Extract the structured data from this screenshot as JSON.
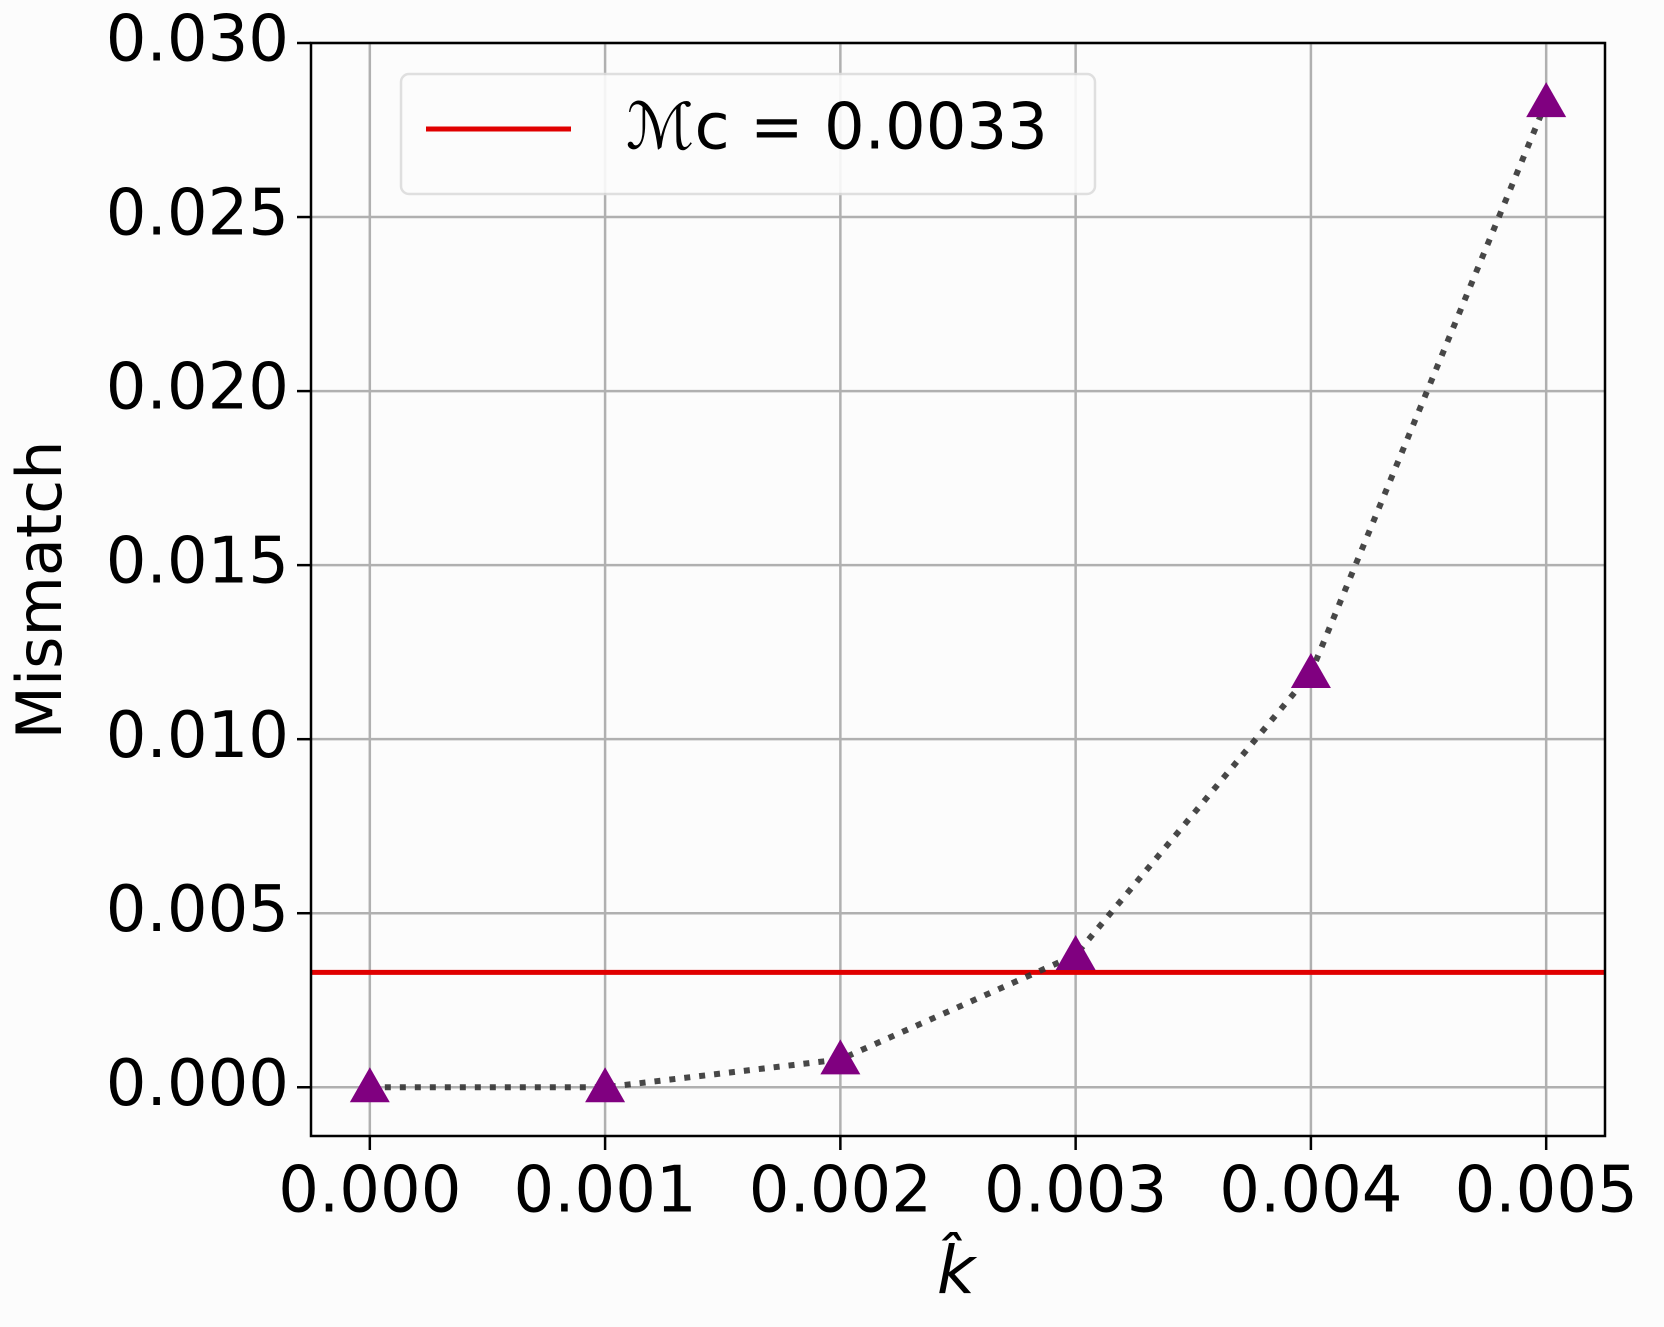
{
  "chart_data": {
    "type": "line",
    "x_label": "k̂",
    "y_label": "Mismatch",
    "x": [
      0,
      0.001,
      0.002,
      0.003,
      0.004,
      0.005
    ],
    "series": [
      {
        "color": "#800080",
        "line_color": "#333333",
        "values": [
          0,
          0,
          0.0008,
          0.0038,
          0.0119,
          0.0283
        ]
      }
    ],
    "reference_line": {
      "name": "ℳc = 0.0033",
      "value": 0.0033,
      "color": "#e00000"
    },
    "xlim": [
      -0.00025,
      0.00525
    ],
    "ylim": [
      -0.0014,
      0.03
    ],
    "xticks": [
      {
        "value": 0,
        "label": "0.000"
      },
      {
        "value": 0.001,
        "label": "0.001"
      },
      {
        "value": 0.002,
        "label": "0.002"
      },
      {
        "value": 0.003,
        "label": "0.003"
      },
      {
        "value": 0.004,
        "label": "0.004"
      },
      {
        "value": 0.005,
        "label": "0.005"
      }
    ],
    "yticks": [
      {
        "value": 0,
        "label": "0.000"
      },
      {
        "value": 0.005,
        "label": "0.005"
      },
      {
        "value": 0.01,
        "label": "0.010"
      },
      {
        "value": 0.015,
        "label": "0.015"
      },
      {
        "value": 0.02,
        "label": "0.020"
      },
      {
        "value": 0.025,
        "label": "0.025"
      },
      {
        "value": 0.03,
        "label": "0.030"
      }
    ],
    "grid": true,
    "legend": "upper left"
  }
}
